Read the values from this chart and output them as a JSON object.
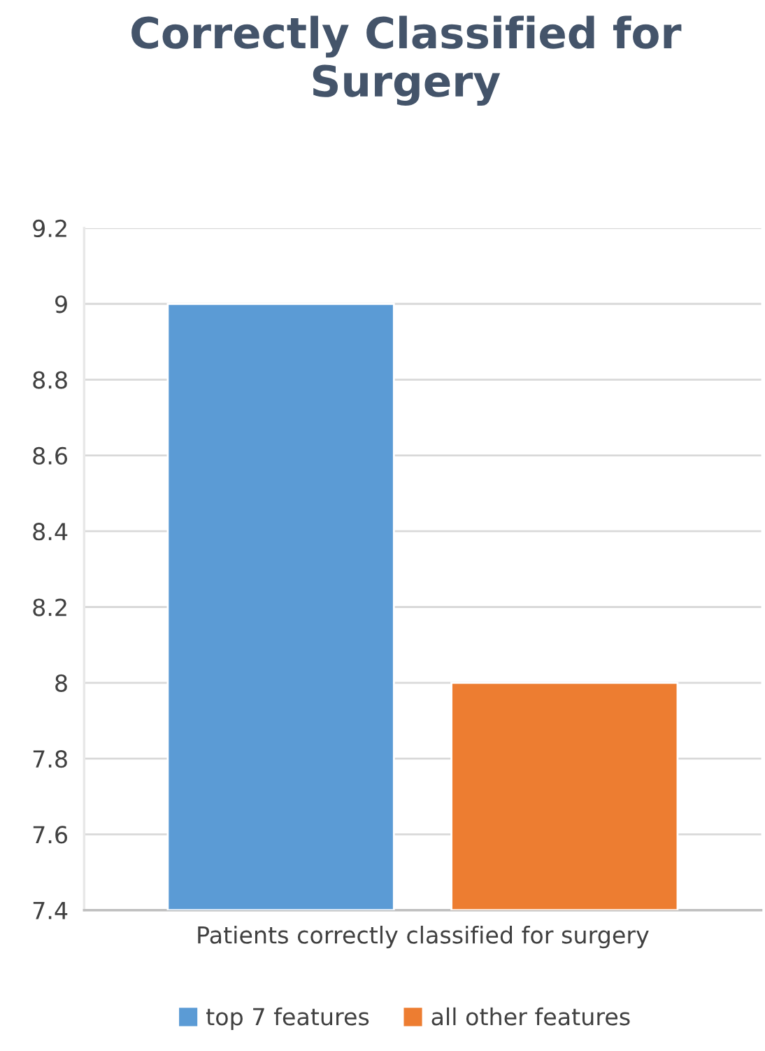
{
  "chart_data": {
    "type": "bar",
    "title": "Correctly Classified for Surgery",
    "categories": [
      "Patients correctly classified for surgery"
    ],
    "series": [
      {
        "name": "top 7 features",
        "color": "#5b9bd5",
        "values": [
          9
        ]
      },
      {
        "name": "all other features",
        "color": "#ed7d31",
        "values": [
          8
        ]
      }
    ],
    "ylim": [
      7.4,
      9.2
    ],
    "yticks": [
      7.4,
      7.6,
      7.8,
      8,
      8.2,
      8.4,
      8.6,
      8.8,
      9,
      9.2
    ],
    "grid": "y",
    "legend": "bottom"
  }
}
